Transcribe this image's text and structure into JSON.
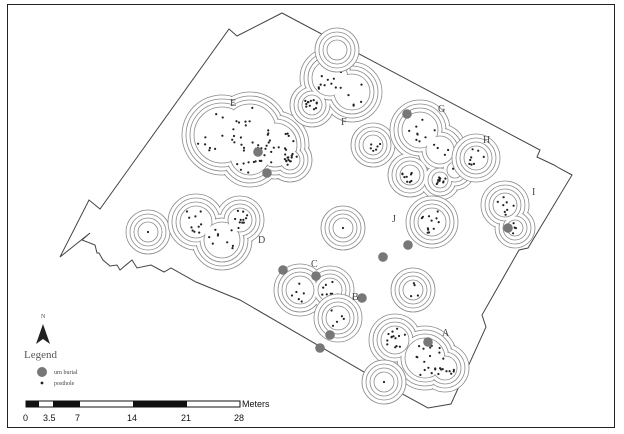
{
  "map": {
    "area_labels": [
      "E",
      "F",
      "G",
      "H",
      "I",
      "J",
      "D",
      "C",
      "B",
      "A"
    ],
    "north_label": "N",
    "legend": {
      "title": "Legend",
      "items": [
        {
          "label": "urn burial",
          "symbol": "filled-circle",
          "color": "#777777"
        },
        {
          "label": "posthole",
          "symbol": "dot",
          "color": "#222222"
        }
      ]
    },
    "scale_bar": {
      "ticks": [
        "0",
        "3.5",
        "7",
        "14",
        "21",
        "28"
      ],
      "unit": "Meters"
    }
  }
}
